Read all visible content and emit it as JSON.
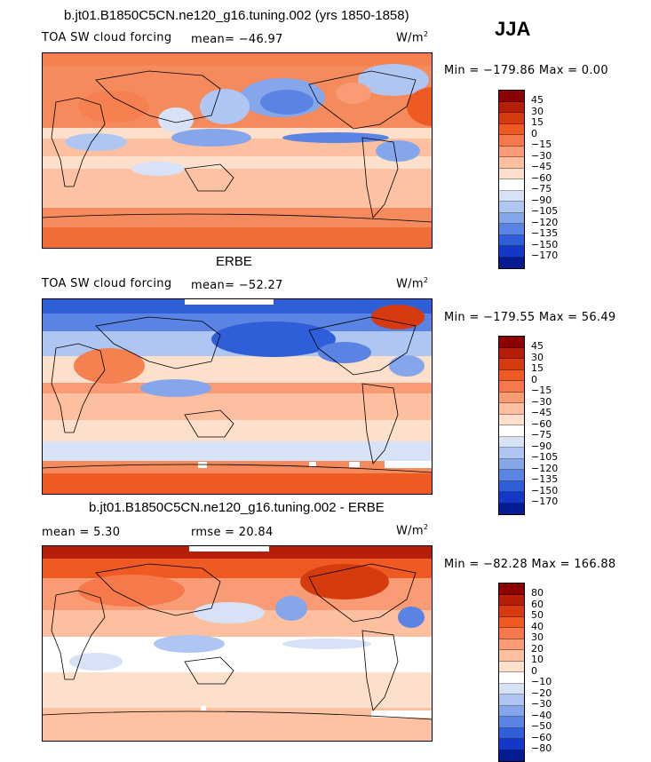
{
  "season": "JJA",
  "unit": "W/m",
  "unit_sup": "2",
  "panels": [
    {
      "title": "b.jt01.B1850C5CN.ne120_g16.tuning.002 (yrs 1850-1858)",
      "left_label": "TOA SW cloud forcing",
      "stat1": "mean=  −46.97",
      "stat2": "",
      "minmax": "Min = −179.86  Max =    0.00",
      "colorbar": {
        "labels": [
          "45",
          "30",
          "15",
          "0",
          "−15",
          "−30",
          "−45",
          "−60",
          "−75",
          "−90",
          "−105",
          "−120",
          "−135",
          "−150",
          "−170"
        ],
        "colors": [
          "#8b0000",
          "#b51f08",
          "#d63b10",
          "#ee5a22",
          "#f5794a",
          "#f99b74",
          "#fcbf9f",
          "#fde0cc",
          "#ffffff",
          "#d7e2f7",
          "#b0c6f2",
          "#86a6ec",
          "#5a83e3",
          "#2f5fd8",
          "#1238c5",
          "#041b91"
        ]
      }
    },
    {
      "title": "ERBE",
      "left_label": "TOA SW cloud forcing",
      "stat1": "mean=  −52.27",
      "stat2": "",
      "minmax": "Min = −179.55  Max =   56.49",
      "colorbar": {
        "labels": [
          "45",
          "30",
          "15",
          "0",
          "−15",
          "−30",
          "−45",
          "−60",
          "−75",
          "−90",
          "−105",
          "−120",
          "−135",
          "−150",
          "−170"
        ],
        "colors": [
          "#8b0000",
          "#b51f08",
          "#d63b10",
          "#ee5a22",
          "#f5794a",
          "#f99b74",
          "#fcbf9f",
          "#fde0cc",
          "#ffffff",
          "#d7e2f7",
          "#b0c6f2",
          "#86a6ec",
          "#5a83e3",
          "#2f5fd8",
          "#1238c5",
          "#041b91"
        ]
      }
    },
    {
      "title": "b.jt01.B1850C5CN.ne120_g16.tuning.002 - ERBE",
      "left_label": "mean =     5.30",
      "stat1": "rmse =   20.84",
      "stat2": "",
      "minmax": "Min = −82.28  Max = 166.88",
      "colorbar": {
        "labels": [
          "80",
          "60",
          "50",
          "40",
          "30",
          "20",
          "10",
          "0",
          "−10",
          "−20",
          "−30",
          "−40",
          "−50",
          "−60",
          "−80"
        ],
        "colors": [
          "#8b0000",
          "#b51f08",
          "#d63b10",
          "#ee5a22",
          "#f5794a",
          "#f99b74",
          "#fcbf9f",
          "#fde0cc",
          "#ffffff",
          "#d7e2f7",
          "#b0c6f2",
          "#86a6ec",
          "#5a83e3",
          "#2f5fd8",
          "#1238c5",
          "#041b91"
        ]
      }
    }
  ]
}
